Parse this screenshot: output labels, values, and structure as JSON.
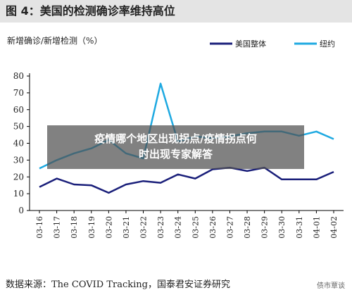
{
  "figure_title": "图 4：美国的检测确诊率维持高位",
  "source_note": "数据来源：The COVID Tracking，国泰君安证券研究",
  "watermark": "债市覃谈",
  "overlay": {
    "line1": "疫情哪个地区出现拐点/疫情拐点何",
    "line2": "时出现专家解答"
  },
  "chart_data": {
    "type": "line",
    "ylabel": "新增确诊/新增检测（%）",
    "ylim": [
      0,
      80
    ],
    "yticks": [
      0,
      10,
      20,
      30,
      40,
      50,
      60,
      70,
      80
    ],
    "categories": [
      "03-16",
      "03-17",
      "03-18",
      "03-19",
      "03-20",
      "03-21",
      "03-22",
      "03-23",
      "03-24",
      "03-25",
      "03-26",
      "03-27",
      "03-28",
      "03-29",
      "03-30",
      "03-31",
      "04-01",
      "04-02"
    ],
    "legend_position": "top-right",
    "grid": false,
    "series": [
      {
        "name": "美国整体",
        "color": "#1a1f7a",
        "values": [
          14,
          19,
          15.5,
          15,
          10.5,
          15.5,
          17.5,
          16.5,
          21.5,
          19,
          24.5,
          25.5,
          23.5,
          25.5,
          18.5,
          18.5,
          18.5,
          23
        ]
      },
      {
        "name": "纽约",
        "color": "#1ea9e1",
        "values": [
          25,
          30,
          34,
          37,
          42,
          34,
          31,
          75.5,
          41,
          44,
          43,
          44,
          46,
          47,
          47,
          44.5,
          47,
          42.5
        ]
      }
    ]
  }
}
